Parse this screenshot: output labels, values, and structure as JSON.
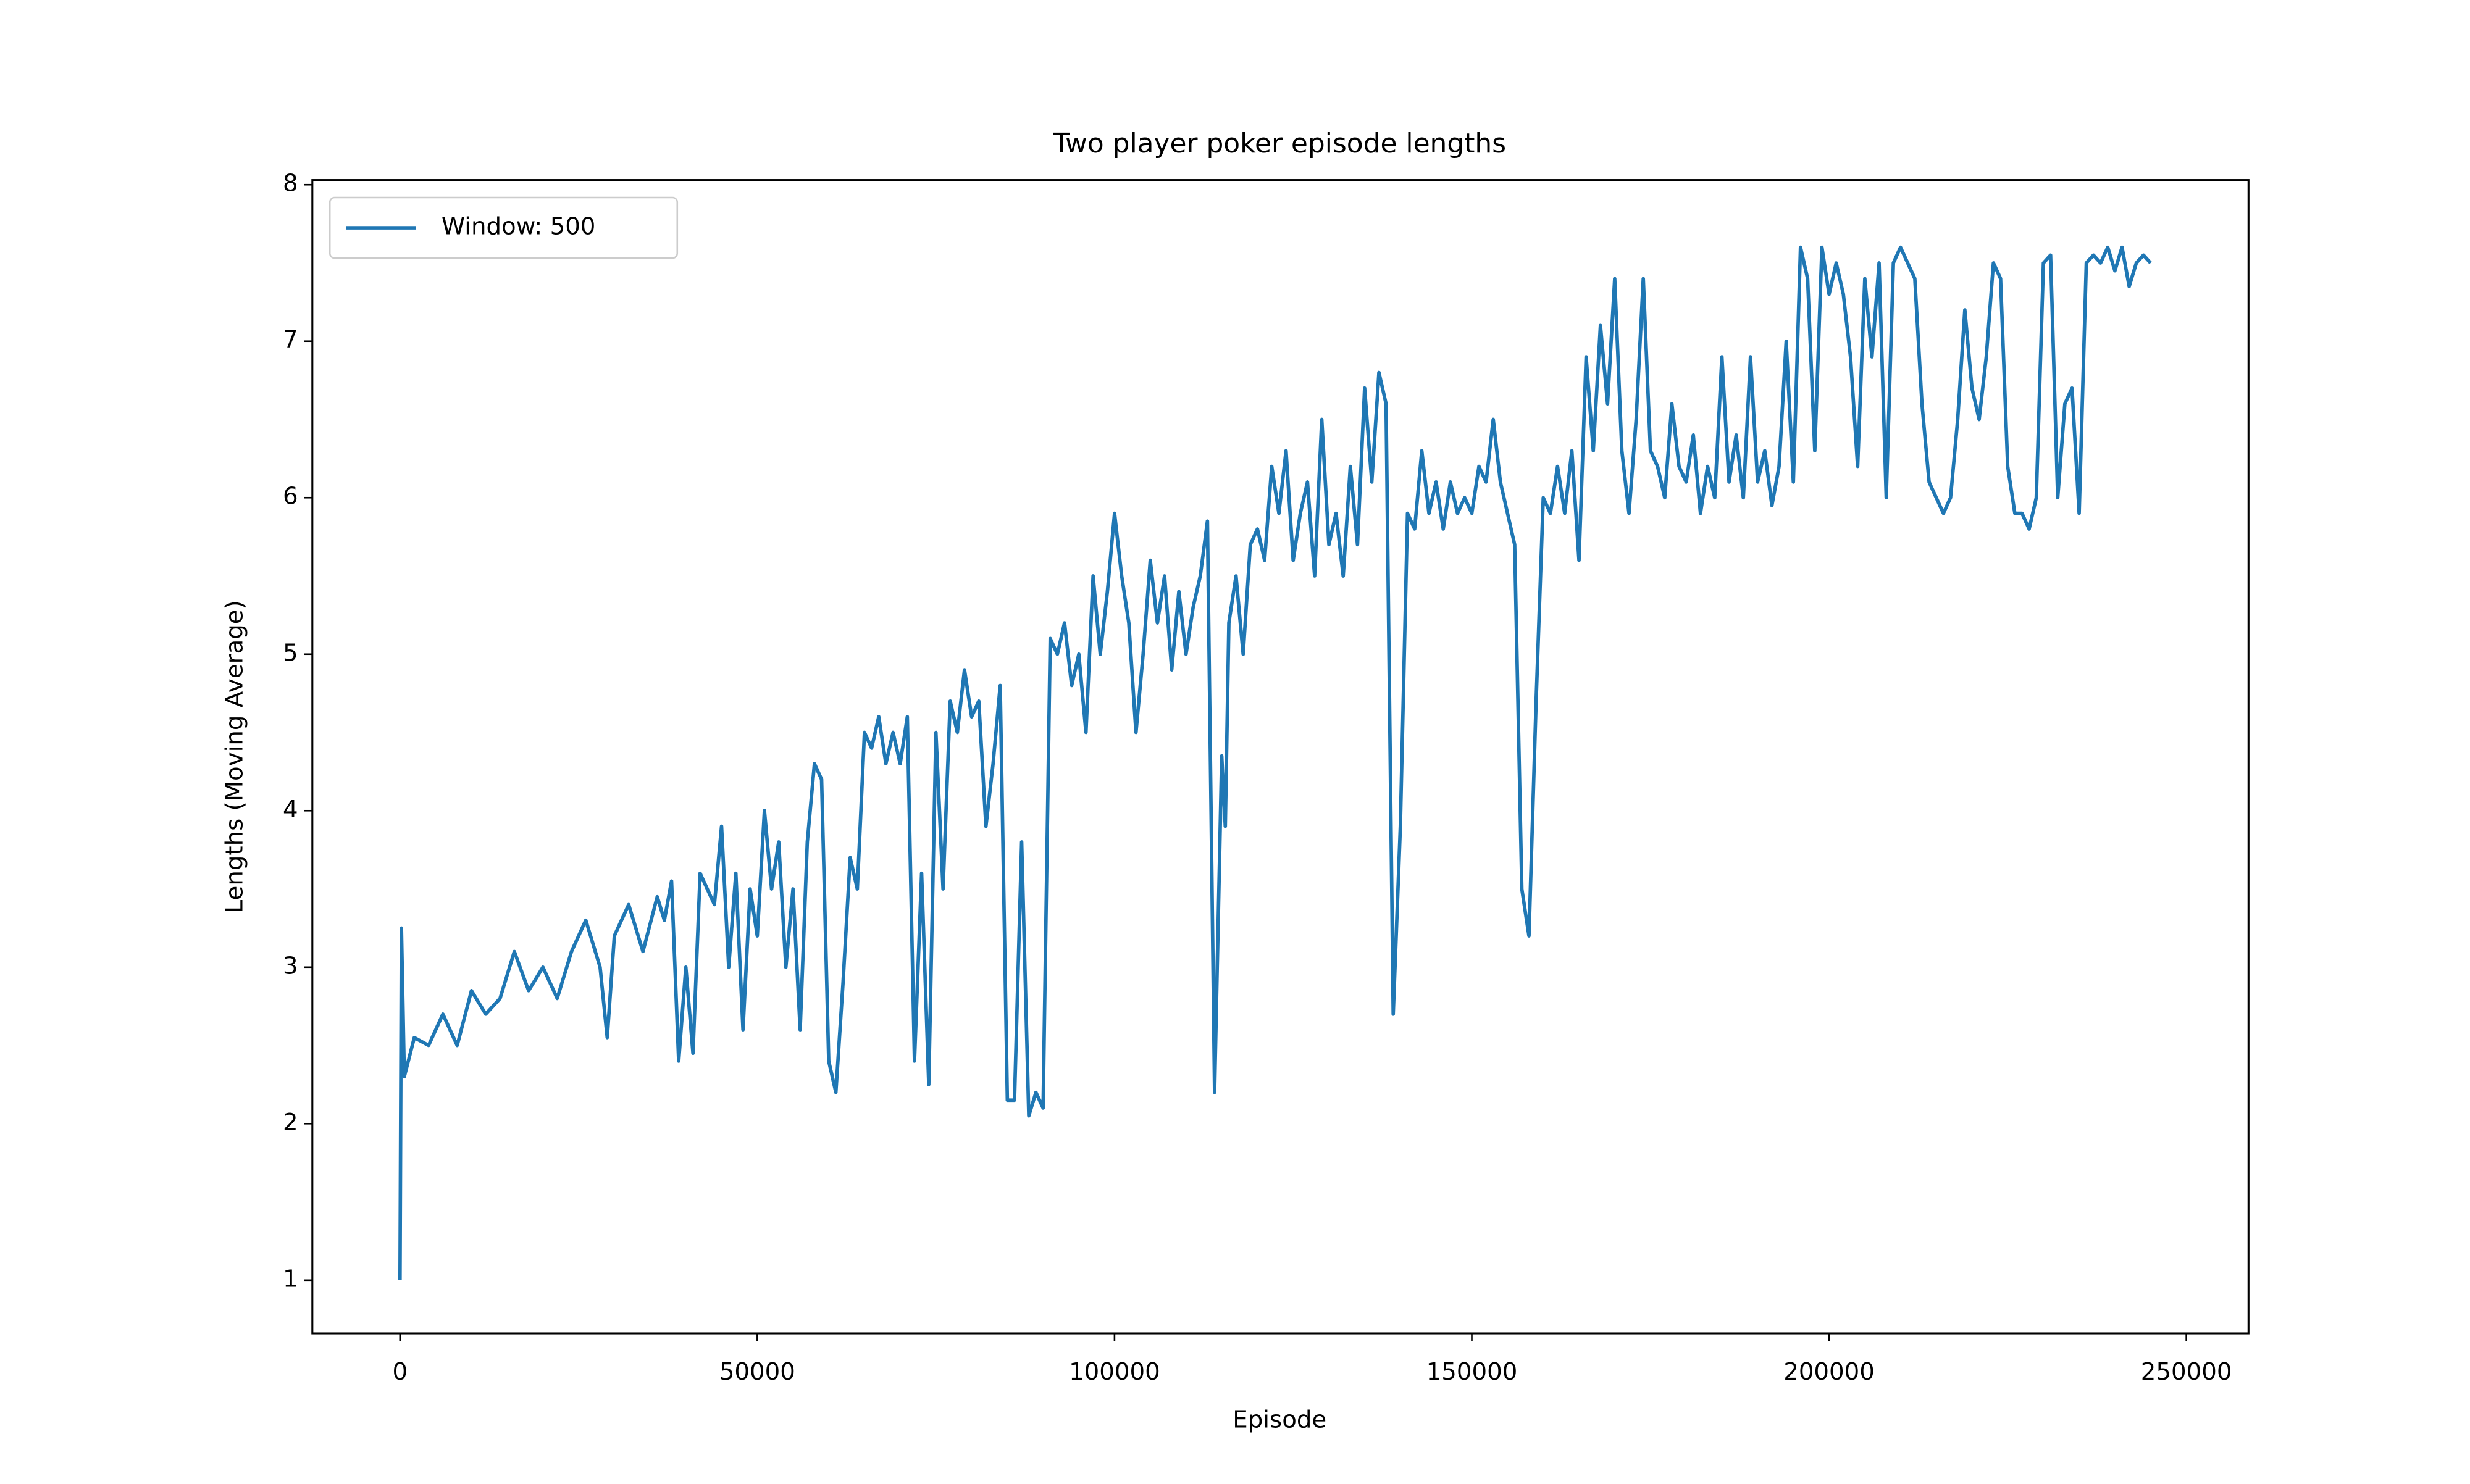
{
  "chart_data": {
    "type": "line",
    "title": "Two player poker episode lengths",
    "x_label": "Episode",
    "y_label": "Lengths (Moving Average)",
    "x": [
      0,
      200,
      600,
      2000,
      4000,
      6000,
      8000,
      10000,
      12000,
      14000,
      16000,
      18000,
      20000,
      22000,
      24000,
      26000,
      28000,
      29000,
      30000,
      32000,
      34000,
      36000,
      37000,
      38000,
      39000,
      40000,
      41000,
      42000,
      44000,
      45000,
      46000,
      47000,
      48000,
      49000,
      50000,
      51000,
      52000,
      53000,
      54000,
      55000,
      56000,
      57000,
      58000,
      59000,
      60000,
      61000,
      62000,
      63000,
      64000,
      65000,
      66000,
      67000,
      68000,
      69000,
      70000,
      71000,
      72000,
      73000,
      74000,
      75000,
      76000,
      77000,
      78000,
      79000,
      80000,
      81000,
      82000,
      83000,
      84000,
      85000,
      86000,
      87000,
      88000,
      89000,
      90000,
      91000,
      92000,
      93000,
      94000,
      95000,
      96000,
      97000,
      98000,
      99000,
      100000,
      101000,
      102000,
      103000,
      104000,
      105000,
      106000,
      107000,
      108000,
      109000,
      110000,
      111000,
      112000,
      113000,
      114000,
      115000,
      115500,
      116000,
      117000,
      118000,
      119000,
      120000,
      121000,
      122000,
      123000,
      124000,
      125000,
      126000,
      127000,
      128000,
      129000,
      130000,
      131000,
      132000,
      133000,
      134000,
      135000,
      136000,
      137000,
      138000,
      139000,
      140000,
      141000,
      142000,
      143000,
      144000,
      145000,
      146000,
      147000,
      148000,
      149000,
      150000,
      151000,
      152000,
      153000,
      154000,
      155000,
      156000,
      157000,
      158000,
      159000,
      160000,
      161000,
      162000,
      163000,
      164000,
      165000,
      166000,
      167000,
      168000,
      169000,
      170000,
      171000,
      172000,
      173000,
      174000,
      175000,
      176000,
      177000,
      178000,
      179000,
      180000,
      181000,
      182000,
      183000,
      184000,
      185000,
      186000,
      187000,
      188000,
      189000,
      190000,
      191000,
      192000,
      193000,
      194000,
      195000,
      196000,
      197000,
      198000,
      199000,
      200000,
      201000,
      202000,
      203000,
      204000,
      205000,
      206000,
      207000,
      208000,
      209000,
      210000,
      211000,
      212000,
      213000,
      214000,
      215000,
      216000,
      217000,
      218000,
      219000,
      220000,
      221000,
      222000,
      223000,
      224000,
      225000,
      226000,
      227000,
      228000,
      229000,
      230000,
      231000,
      232000,
      233000,
      234000,
      235000,
      236000,
      237000,
      238000,
      239000,
      240000,
      241000,
      242000,
      243000,
      244000,
      245000
    ],
    "series": [
      {
        "name": "Window: 500",
        "color": "#1f77b4",
        "values": [
          1.0,
          3.25,
          2.3,
          2.55,
          2.5,
          2.7,
          2.5,
          2.85,
          2.7,
          2.8,
          3.1,
          2.85,
          3.0,
          2.8,
          3.1,
          3.3,
          3.0,
          2.55,
          3.2,
          3.4,
          3.1,
          3.45,
          3.3,
          3.55,
          2.4,
          3.0,
          2.45,
          3.6,
          3.4,
          3.9,
          3.0,
          3.6,
          2.6,
          3.5,
          3.2,
          4.0,
          3.5,
          3.8,
          3.0,
          3.5,
          2.6,
          3.8,
          4.3,
          4.2,
          2.4,
          2.2,
          2.9,
          3.7,
          3.5,
          4.5,
          4.4,
          4.6,
          4.3,
          4.5,
          4.3,
          4.6,
          2.4,
          3.6,
          2.25,
          4.5,
          3.5,
          4.7,
          4.5,
          4.9,
          4.6,
          4.7,
          3.9,
          4.3,
          4.8,
          2.15,
          2.15,
          3.8,
          2.05,
          2.2,
          2.1,
          5.1,
          5.0,
          5.2,
          4.8,
          5.0,
          4.5,
          5.5,
          5.0,
          5.4,
          5.9,
          5.5,
          5.2,
          4.5,
          5.0,
          5.6,
          5.2,
          5.5,
          4.9,
          5.4,
          5.0,
          5.3,
          5.5,
          5.85,
          2.2,
          4.35,
          3.9,
          5.2,
          5.5,
          5.0,
          5.7,
          5.8,
          5.6,
          6.2,
          5.9,
          6.3,
          5.6,
          5.9,
          6.1,
          5.5,
          6.5,
          5.7,
          5.9,
          5.5,
          6.2,
          5.7,
          6.7,
          6.1,
          6.8,
          6.6,
          2.7,
          3.9,
          5.9,
          5.8,
          6.3,
          5.9,
          6.1,
          5.8,
          6.1,
          5.9,
          6.0,
          5.9,
          6.2,
          6.1,
          6.5,
          6.1,
          5.9,
          5.7,
          3.5,
          3.2,
          4.7,
          6.0,
          5.9,
          6.2,
          5.9,
          6.3,
          5.6,
          6.9,
          6.3,
          7.1,
          6.6,
          7.4,
          6.3,
          5.9,
          6.5,
          7.4,
          6.3,
          6.2,
          6.0,
          6.6,
          6.2,
          6.1,
          6.4,
          5.9,
          6.2,
          6.0,
          6.9,
          6.1,
          6.4,
          6.0,
          6.9,
          6.1,
          6.3,
          5.95,
          6.2,
          7.0,
          6.1,
          7.6,
          7.4,
          6.3,
          7.6,
          7.3,
          7.5,
          7.3,
          6.9,
          6.2,
          7.4,
          6.9,
          7.5,
          6.0,
          7.5,
          7.6,
          7.5,
          7.4,
          6.6,
          6.1,
          6.0,
          5.9,
          6.0,
          6.5,
          7.2,
          6.7,
          6.5,
          6.9,
          7.5,
          7.4,
          6.2,
          5.9,
          5.9,
          5.8,
          6.0,
          7.5,
          7.55,
          6.0,
          6.6,
          6.7,
          5.9,
          7.5,
          7.55,
          7.5,
          7.6,
          7.45,
          7.6,
          7.35,
          7.5,
          7.55,
          7.5
        ]
      }
    ],
    "xlim": [
      -12270,
      258700
    ],
    "ylim": [
      0.66,
      8.03
    ],
    "xticks": [
      0,
      50000,
      100000,
      150000,
      200000,
      250000
    ],
    "yticks": [
      1,
      2,
      3,
      4,
      5,
      6,
      7,
      8
    ],
    "grid": false,
    "legend": "upper left"
  }
}
